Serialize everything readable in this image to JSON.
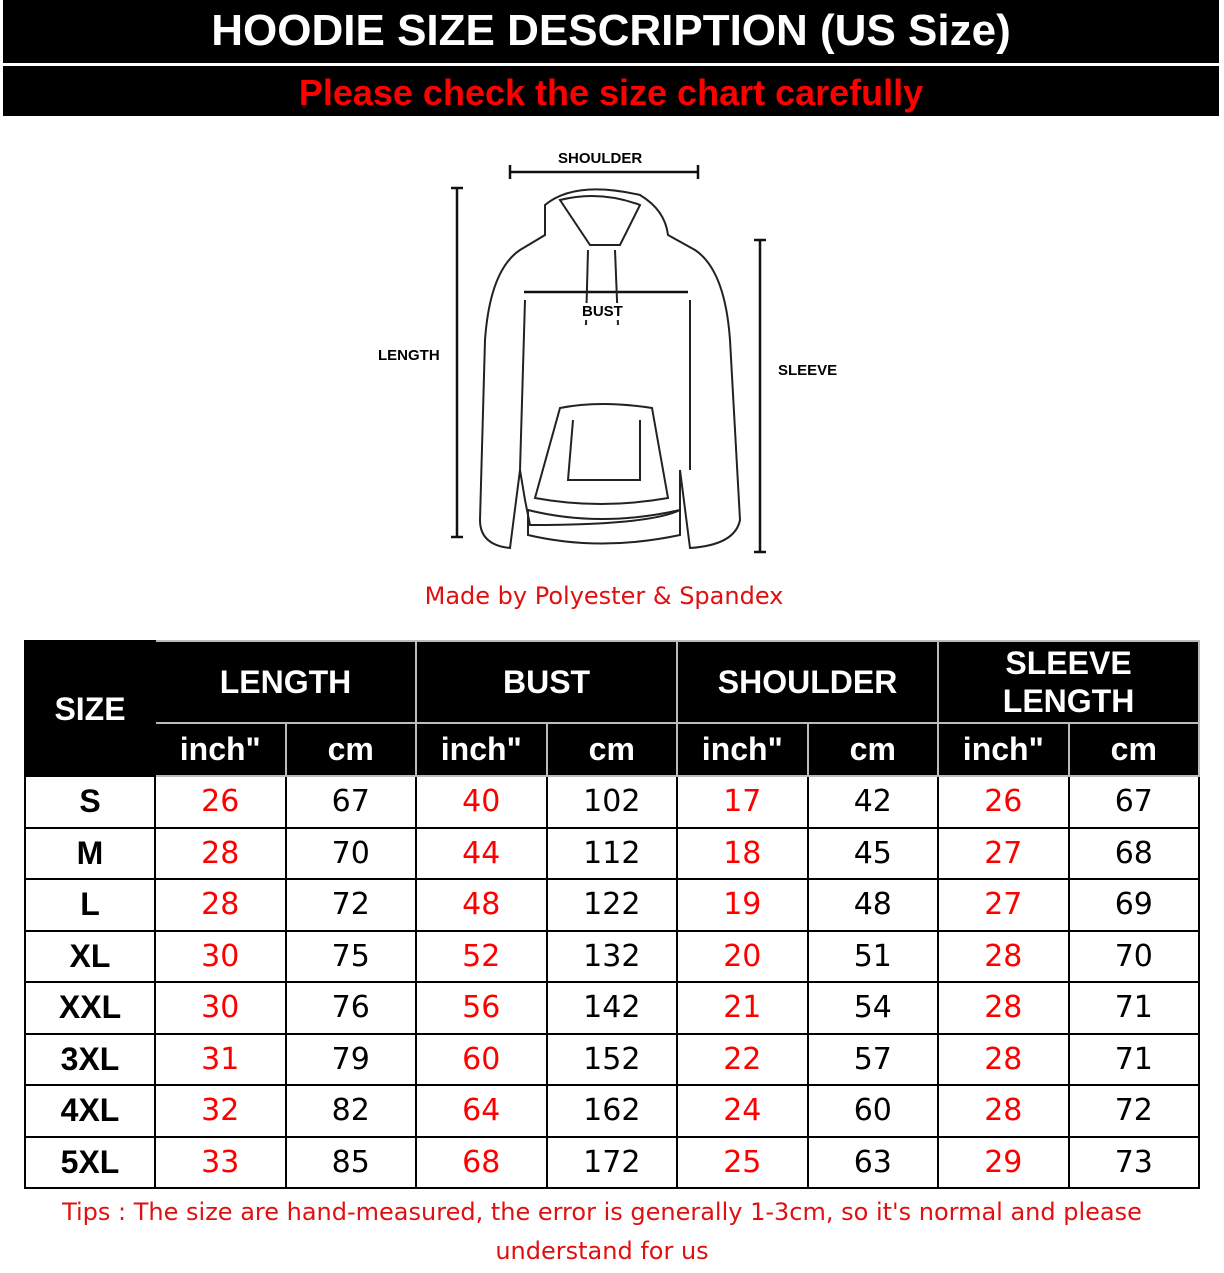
{
  "header": {
    "title": "HOODIE SIZE DESCRIPTION (US Size)",
    "subtitle": "Please check the size chart carefully"
  },
  "diagram": {
    "shoulder": "SHOULDER",
    "bust": "BUST",
    "length": "LENGTH",
    "sleeve": "SLEEVE"
  },
  "material": "Made by Polyester & Spandex",
  "table": {
    "size_header": "SIZE",
    "groups": [
      "LENGTH",
      "BUST",
      "SHOULDER",
      "SLEEVE LENGTH"
    ],
    "units": [
      "inch\"",
      "cm"
    ],
    "rows": [
      [
        "S",
        "26",
        "67",
        "40",
        "102",
        "17",
        "42",
        "26",
        "67"
      ],
      [
        "M",
        "28",
        "70",
        "44",
        "112",
        "18",
        "45",
        "27",
        "68"
      ],
      [
        "L",
        "28",
        "72",
        "48",
        "122",
        "19",
        "48",
        "27",
        "69"
      ],
      [
        "XL",
        "30",
        "75",
        "52",
        "132",
        "20",
        "51",
        "28",
        "70"
      ],
      [
        "XXL",
        "30",
        "76",
        "56",
        "142",
        "21",
        "54",
        "28",
        "71"
      ],
      [
        "3XL",
        "31",
        "79",
        "60",
        "152",
        "22",
        "57",
        "28",
        "71"
      ],
      [
        "4XL",
        "32",
        "82",
        "64",
        "162",
        "24",
        "60",
        "28",
        "72"
      ],
      [
        "5XL",
        "33",
        "85",
        "68",
        "172",
        "25",
        "63",
        "29",
        "73"
      ]
    ]
  },
  "tips": "Tips : The size are hand-measured, the error is generally 1-3cm, so it's normal and please understand for us",
  "colors": {
    "accent": "#ff0000",
    "header_bg": "#000000"
  }
}
